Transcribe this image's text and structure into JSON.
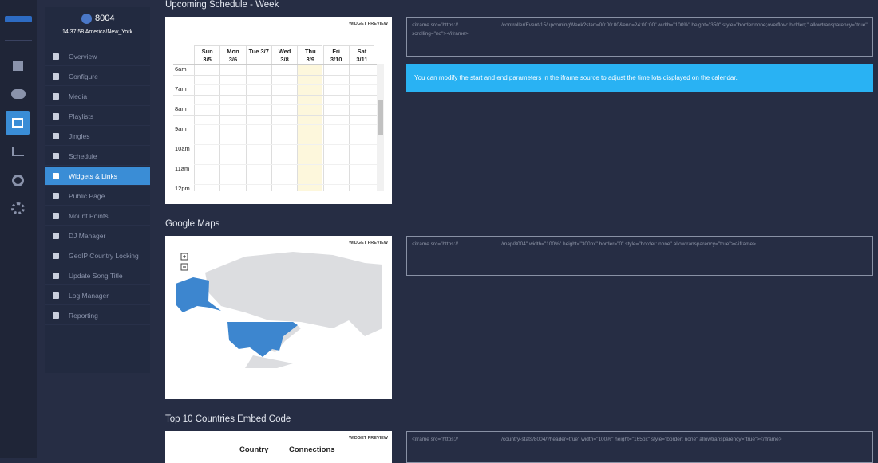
{
  "sidebar": {
    "server_name": "8004",
    "clock": "14:37:58 America/New_York",
    "nav": [
      "Overview",
      "Configure",
      "Media",
      "Playlists",
      "Jingles",
      "Schedule",
      "Widgets & Links",
      "Public Page",
      "Mount Points",
      "DJ Manager",
      "GeoIP Country Locking",
      "Update Song Title",
      "Log Manager",
      "Reporting"
    ],
    "active": "Widgets & Links"
  },
  "sections": [
    {
      "title": "Upcoming Schedule - Week",
      "preview_label": "WIDGET PREVIEW",
      "embed_code": "<iframe src=\"https://                              /controller/Event/15/upcomingWeek?start=00:00:00&end=24:00:00\" width=\"100%\" height=\"350\" style=\"border:none;overflow: hidden;\" allowtransparency=\"true\" scrolling=\"no\"></iframe>",
      "info": "You can modify the start and end parameters in the iframe source to adjust the time lots displayed on the calendar."
    },
    {
      "title": "Google Maps",
      "preview_label": "WIDGET PREVIEW",
      "embed_code": "<iframe src=\"https://                              /map/8004\" width=\"100%\" height=\"300px\" border=\"0\" style=\"border: none\" allowtransparency=\"true\"></iframe>"
    },
    {
      "title": "Top 10 Countries Embed Code",
      "preview_label": "WIDGET PREVIEW",
      "embed_code": "<iframe src=\"https://                              /country-stats/8004/?header=true\" width=\"100%\" height=\"165px\" style=\"border: none\" allowtransparency=\"true\"></iframe>",
      "columns": [
        "Country",
        "Connections"
      ]
    }
  ],
  "calendar": {
    "days": [
      {
        "name": "Sun",
        "date": "3/5"
      },
      {
        "name": "Mon",
        "date": "3/6"
      },
      {
        "name": "Tue 3/7",
        "date": null
      },
      {
        "name": "Wed",
        "date": "3/8"
      },
      {
        "name": "Thu",
        "date": "3/9"
      },
      {
        "name": "Fri",
        "date": "3/10"
      },
      {
        "name": "Sat",
        "date": "3/11"
      }
    ],
    "times": [
      "6am",
      "7am",
      "8am",
      "9am",
      "10am",
      "11am",
      "12pm"
    ]
  }
}
